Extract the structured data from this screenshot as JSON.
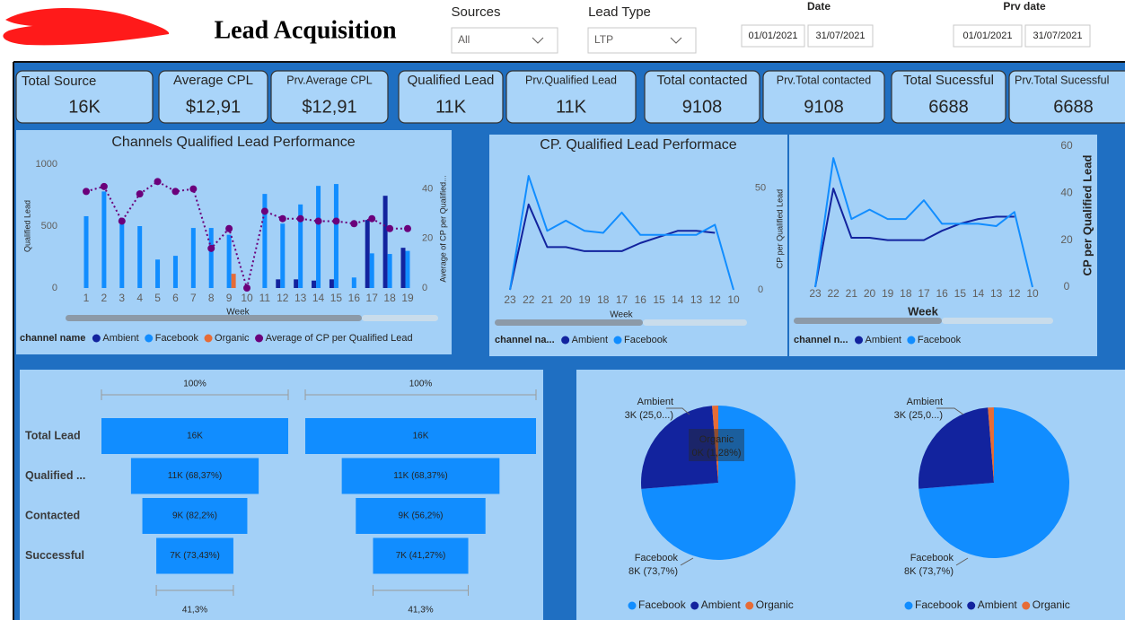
{
  "header": {
    "title": "Lead Acquisition"
  },
  "filters": [
    {
      "label": "Sources",
      "value": "All"
    },
    {
      "label": "Lead Type",
      "value": "LTP"
    },
    {
      "label": "Date",
      "from": "01/01/2021",
      "to": "31/07/2021"
    },
    {
      "label": "Prv date",
      "from": "01/01/2021",
      "to": "31/07/2021"
    }
  ],
  "cards": [
    {
      "label": "Total Source",
      "value": "16K"
    },
    {
      "label": "Average CPL",
      "value": "$12,91"
    },
    {
      "label": "Prv.Average CPL",
      "value": "$12,91"
    },
    {
      "label": "Qualified Lead",
      "value": "11K"
    },
    {
      "label": "Prv.Qualified Lead",
      "value": "11K"
    },
    {
      "label": "Total contacted",
      "value": "9108"
    },
    {
      "label": "Prv.Total contacted",
      "value": "9108"
    },
    {
      "label": "Total Sucessful",
      "value": "6688"
    },
    {
      "label": "Prv.Total Sucessful",
      "value": "6688"
    }
  ],
  "chart_data": [
    {
      "type": "combo",
      "title": "Channels Qualified Lead Performance",
      "x_label": "Week",
      "y_label": "Qualified Lead",
      "y2_label": "Average of CP per Qualified...",
      "legend_title": "channel name",
      "categories": [
        1,
        2,
        3,
        4,
        5,
        6,
        7,
        8,
        9,
        10,
        11,
        12,
        13,
        14,
        15,
        16,
        17,
        18,
        19
      ],
      "ylim": [
        0,
        1000
      ],
      "yticks": [
        0,
        500,
        1000
      ],
      "y2lim": [
        0,
        50
      ],
      "y2ticks": [
        0,
        20,
        40
      ],
      "series": [
        {
          "name": "Ambient",
          "color": "#12239E",
          "kind": "bar",
          "values": [
            0,
            0,
            0,
            0,
            0,
            0,
            0,
            0,
            0,
            0,
            0,
            70,
            70,
            60,
            70,
            0,
            550,
            745,
            325
          ]
        },
        {
          "name": "Facebook",
          "color": "#118DFF",
          "kind": "bar",
          "values": [
            580,
            780,
            515,
            500,
            230,
            260,
            485,
            485,
            430,
            10,
            760,
            520,
            675,
            825,
            840,
            85,
            280,
            275,
            300
          ]
        },
        {
          "name": "Organic",
          "color": "#E66C37",
          "kind": "bar",
          "values": [
            0,
            0,
            0,
            0,
            0,
            0,
            0,
            0,
            115,
            0,
            0,
            0,
            0,
            0,
            0,
            0,
            0,
            0,
            0
          ]
        },
        {
          "name": "Average of CP per Qualified Lead",
          "color": "#6B007B",
          "kind": "line",
          "axis": "y2",
          "values": [
            39,
            41,
            27,
            38,
            43,
            39,
            40,
            16,
            24,
            0,
            31,
            28,
            28,
            27,
            27,
            26,
            28,
            24,
            24
          ]
        }
      ]
    },
    {
      "type": "line",
      "title": "CP. Qualified Lead Performace",
      "x_label": "Week",
      "y_label": "CP per Qualified Lead",
      "legend_title": "channel na...",
      "categories": [
        23,
        22,
        21,
        20,
        19,
        18,
        17,
        16,
        15,
        14,
        13,
        12,
        10
      ],
      "ylim": [
        0,
        60
      ],
      "yticks": [
        0,
        50
      ],
      "series": [
        {
          "name": "Ambient",
          "color": "#12239E",
          "values": [
            0,
            42,
            21,
            21,
            19,
            19,
            19,
            23,
            26,
            29,
            29,
            28,
            null
          ]
        },
        {
          "name": "Facebook",
          "color": "#118DFF",
          "values": [
            0,
            56,
            29,
            34,
            29,
            28,
            38,
            27,
            27,
            27,
            27,
            32,
            0
          ]
        }
      ]
    },
    {
      "type": "line",
      "x_label": "Week",
      "y_label": "CP per Qualified Lead",
      "legend_title": "channel n...",
      "categories": [
        23,
        22,
        21,
        20,
        19,
        18,
        17,
        16,
        15,
        14,
        13,
        12,
        10
      ],
      "ylim": [
        0,
        60
      ],
      "yticks": [
        0,
        20,
        40,
        60
      ],
      "series": [
        {
          "name": "Ambient",
          "color": "#12239E",
          "values": [
            0,
            42,
            21,
            21,
            20,
            20,
            20,
            24,
            27,
            29,
            30,
            30,
            null
          ]
        },
        {
          "name": "Facebook",
          "color": "#118DFF",
          "values": [
            0,
            55,
            29,
            33,
            29,
            29,
            37,
            27,
            27,
            27,
            26,
            32,
            0
          ]
        }
      ]
    },
    {
      "type": "funnel",
      "color": "#118DFF",
      "top_label": "100%",
      "bottom_label": "41,3%",
      "categories": [
        "Total Lead",
        "Qualified ...",
        "Contacted",
        "Successful"
      ],
      "values": [
        16206,
        11080,
        9108,
        6688
      ],
      "value_labels": [
        "16K",
        "11K (68,37%)",
        "9K (82,2%)",
        "7K (73,43%)"
      ]
    },
    {
      "type": "funnel",
      "color": "#118DFF",
      "top_label": "100%",
      "bottom_label": "41,3%",
      "values": [
        16206,
        11080,
        9108,
        6688
      ],
      "value_labels": [
        "16K",
        "11K (68,37%)",
        "9K (56,2%)",
        "7K (41,27%)"
      ]
    },
    {
      "type": "pie",
      "categories": [
        "Facebook",
        "Ambient",
        "Organic"
      ],
      "values": [
        73.7,
        25.0,
        1.28
      ],
      "colors": [
        "#118DFF",
        "#12239E",
        "#E66C37"
      ],
      "value_labels": [
        "8K (73,7%)",
        "3K (25,0...)",
        "0K (1,28%)"
      ]
    },
    {
      "type": "pie",
      "categories": [
        "Facebook",
        "Ambient",
        "Organic"
      ],
      "values": [
        73.7,
        25.0,
        1.28
      ],
      "colors": [
        "#118DFF",
        "#12239E",
        "#E66C37"
      ],
      "value_labels": [
        "8K (73,7%)",
        "3K (25,0...)",
        null
      ]
    }
  ]
}
